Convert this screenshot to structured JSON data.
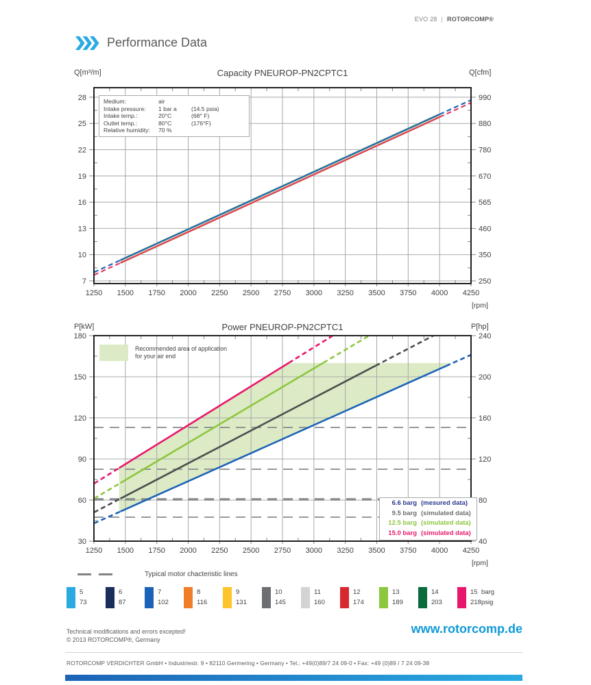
{
  "header": {
    "product": "EVO 28",
    "separator": "|",
    "brand": "ROTORCOMP®",
    "title": "Performance Data",
    "accent_color": "#29abe2"
  },
  "chart_data": [
    {
      "id": "capacity",
      "type": "line",
      "title": "Capacity PNEUROP-PN2CPTC1",
      "ylabel_left": "Q[m³/m]",
      "ylabel_right": "Q[cfm]",
      "x_unit": "[rpm]",
      "xlim": [
        1250,
        4250
      ],
      "x_ticks": [
        1250,
        1500,
        1750,
        2000,
        2250,
        2500,
        2750,
        3000,
        3250,
        3500,
        3750,
        4000,
        4250
      ],
      "y_ticks_left": [
        28,
        25,
        22,
        19,
        16,
        13,
        10,
        7
      ],
      "y_ticks_right": [
        990,
        880,
        780,
        670,
        565,
        460,
        350,
        250
      ],
      "grid": true,
      "series": [
        {
          "name": "capacity-band",
          "color": "#cde2a4",
          "width": 7,
          "points": [
            [
              1460,
              9.2
            ],
            [
              4000,
              25.9
            ]
          ]
        },
        {
          "name": "capacity-line-blue",
          "color": "#1c63b7",
          "width": 2.2,
          "offset": 0.18,
          "points": [
            [
              1250,
              7.8
            ],
            [
              4250,
              27.5
            ]
          ],
          "solid_between": [
            1460,
            4000
          ]
        },
        {
          "name": "capacity-line-red",
          "color": "#e5395f",
          "width": 2.2,
          "offset": -0.13,
          "points": [
            [
              1250,
              7.8
            ],
            [
              4250,
              27.5
            ]
          ],
          "solid_between": [
            1460,
            4000
          ]
        }
      ],
      "info_box": {
        "rows": [
          {
            "label": "Medium:",
            "value": "air",
            "alt": ""
          },
          {
            "label": "Intake pressure:",
            "value": "1 bar a",
            "alt": "(14.5 psia)"
          },
          {
            "label": "Intake temp.:",
            "value": "20°C",
            "alt": "(68° F)"
          },
          {
            "label": "Outlet temp.:",
            "value": "80°C",
            "alt": "(176°F)"
          },
          {
            "label": "Relative humidity:",
            "value": "70 %",
            "alt": ""
          }
        ]
      }
    },
    {
      "id": "power",
      "type": "line",
      "title": "Power PNEUROP-PN2CPTC1",
      "ylabel_left": "P[kW]",
      "ylabel_right": "P[hp]",
      "x_unit": "[rpm]",
      "xlim": [
        1250,
        4250
      ],
      "ylim": [
        30,
        180
      ],
      "x_ticks": [
        1250,
        1500,
        1750,
        2000,
        2250,
        2500,
        2750,
        3000,
        3250,
        3500,
        3750,
        4000,
        4250
      ],
      "y_ticks_left": [
        180,
        150,
        120,
        90,
        60,
        30
      ],
      "y_ticks_right": [
        240,
        200,
        160,
        120,
        80,
        40
      ],
      "grid": true,
      "series": [
        {
          "name": "15.0 barg",
          "color": "#e8176c",
          "width": 2.6,
          "points": [
            [
              1250,
              72
            ],
            [
              3150,
              180
            ]
          ],
          "solid_between": [
            1450,
            2800
          ]
        },
        {
          "name": "12.5 barg",
          "color": "#8dc63f",
          "width": 2.6,
          "points": [
            [
              1250,
              61
            ],
            [
              3440,
              180
            ]
          ],
          "solid_between": [
            1460,
            3075
          ]
        },
        {
          "name": "9.5 barg",
          "color": "#4d4d4f",
          "width": 2.6,
          "points": [
            [
              1250,
              51
            ],
            [
              3950,
              180
            ]
          ],
          "solid_between": [
            1460,
            3490
          ]
        },
        {
          "name": "6.6 barg",
          "color": "#1c63b7",
          "width": 2.6,
          "points": [
            [
              1250,
              43
            ],
            [
              4250,
              166
            ]
          ],
          "solid_between": [
            1460,
            4050
          ]
        }
      ],
      "recommended_area": {
        "color": "#dcebc5",
        "points": [
          [
            1450,
            51.2
          ],
          [
            1450,
            83.4
          ],
          [
            2798,
            160
          ],
          [
            4103,
            160
          ]
        ]
      },
      "motor_lines": {
        "values": [
          113,
          82.5,
          60.5,
          47.5
        ],
        "color": "#87898c",
        "thick_index": 2,
        "legend_label": "Typical motor chacteristic lines"
      },
      "area_note": {
        "line1": "Recommended area of application",
        "line2": "for  your air end"
      },
      "legend": {
        "rows": [
          {
            "value": "6.6 barg",
            "note": "(mesured data)",
            "color": "#2b3990"
          },
          {
            "value": "9.5 barg",
            "note": "(simulated data)",
            "color": "#6d6e71"
          },
          {
            "value": "12.5 barg",
            "note": "(simulated data)",
            "color": "#8dc63f"
          },
          {
            "value": "15.0 barg",
            "note": "(simulated data)",
            "color": "#e8176c"
          }
        ]
      }
    }
  ],
  "pressure_scale": {
    "unit_top": "barg",
    "unit_bottom": "psig",
    "items": [
      {
        "barg": "5",
        "psig": "73",
        "color": "#29abe2"
      },
      {
        "barg": "6",
        "psig": "87",
        "color": "#1b2d5b"
      },
      {
        "barg": "7",
        "psig": "102",
        "color": "#1c63b7"
      },
      {
        "barg": "8",
        "psig": "116",
        "color": "#f07e29"
      },
      {
        "barg": "9",
        "psig": "131",
        "color": "#fdc42c"
      },
      {
        "barg": "10",
        "psig": "145",
        "color": "#6d6e71"
      },
      {
        "barg": "11",
        "psig": "160",
        "color": "#d1d3d4"
      },
      {
        "barg": "12",
        "psig": "174",
        "color": "#d6282e"
      },
      {
        "barg": "13",
        "psig": "189",
        "color": "#8dc63f"
      },
      {
        "barg": "14",
        "psig": "203",
        "color": "#0a6b3c"
      },
      {
        "barg": "15",
        "psig": "218",
        "color": "#e8176c"
      }
    ]
  },
  "footer": {
    "note_line1": "Technical modifications and errors excepted!",
    "note_line2": "© 2013 ROTORCOMP®, Germany",
    "url": "www.rotorcomp.de",
    "address": "ROTORCOMP VERDICHTER GmbH  •  Industriestr. 9  •  82110 Germering  •  Germany  •  Tel.: +49(0)89/7 24 09-0  •  Fax: +49 (0)89 / 7 24 09-38"
  }
}
